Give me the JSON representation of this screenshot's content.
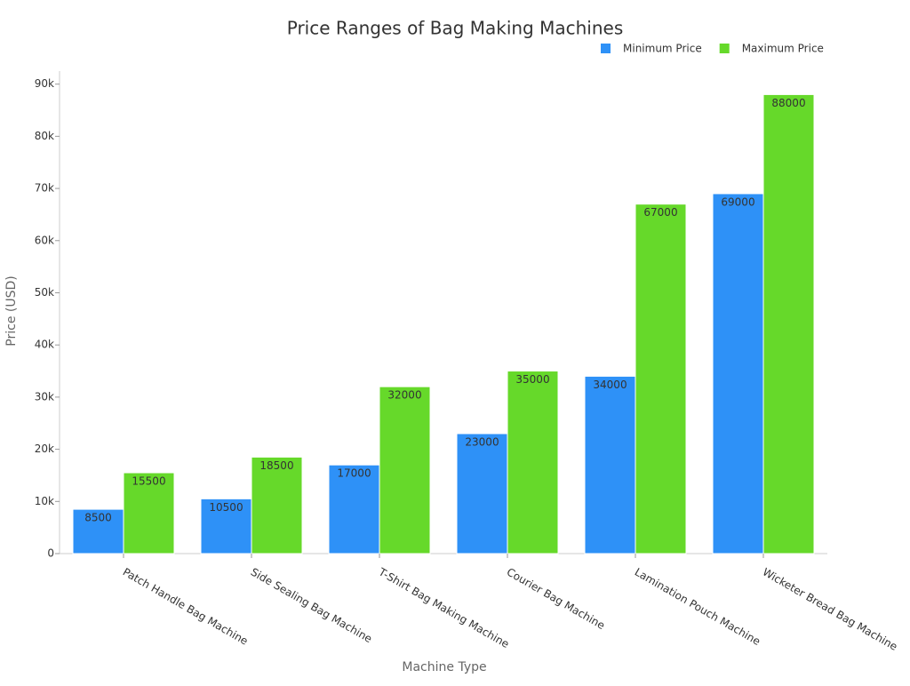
{
  "chart_data": {
    "type": "bar",
    "title": "Price Ranges of Bag Making Machines",
    "x_label": "Machine Type",
    "y_label": "Price (USD)",
    "categories": [
      "Patch Handle Bag Machine",
      "Side Sealing Bag Machine",
      "T-Shirt Bag Making Machine",
      "Courier Bag Machine",
      "Lamination Pouch Machine",
      "Wicketer Bread Bag Machine"
    ],
    "series": [
      {
        "name": "Minimum Price",
        "color": "#2e91f7",
        "values": [
          8500,
          10500,
          17000,
          23000,
          34000,
          69000
        ]
      },
      {
        "name": "Maximum Price",
        "color": "#66d92a",
        "values": [
          15500,
          18500,
          32000,
          35000,
          67000,
          88000
        ]
      }
    ],
    "ylim": [
      0,
      92500
    ],
    "yticks": [
      0,
      {
        "value": 10000,
        "label": "10k"
      },
      {
        "value": 20000,
        "label": "20k"
      },
      {
        "value": 30000,
        "label": "30k"
      },
      {
        "value": 40000,
        "label": "40k"
      },
      {
        "value": 50000,
        "label": "50k"
      },
      {
        "value": 60000,
        "label": "60k"
      },
      {
        "value": 70000,
        "label": "70k"
      },
      {
        "value": 80000,
        "label": "80k"
      },
      {
        "value": 90000,
        "label": "90k"
      }
    ],
    "legend": "top-right",
    "grid": false
  }
}
